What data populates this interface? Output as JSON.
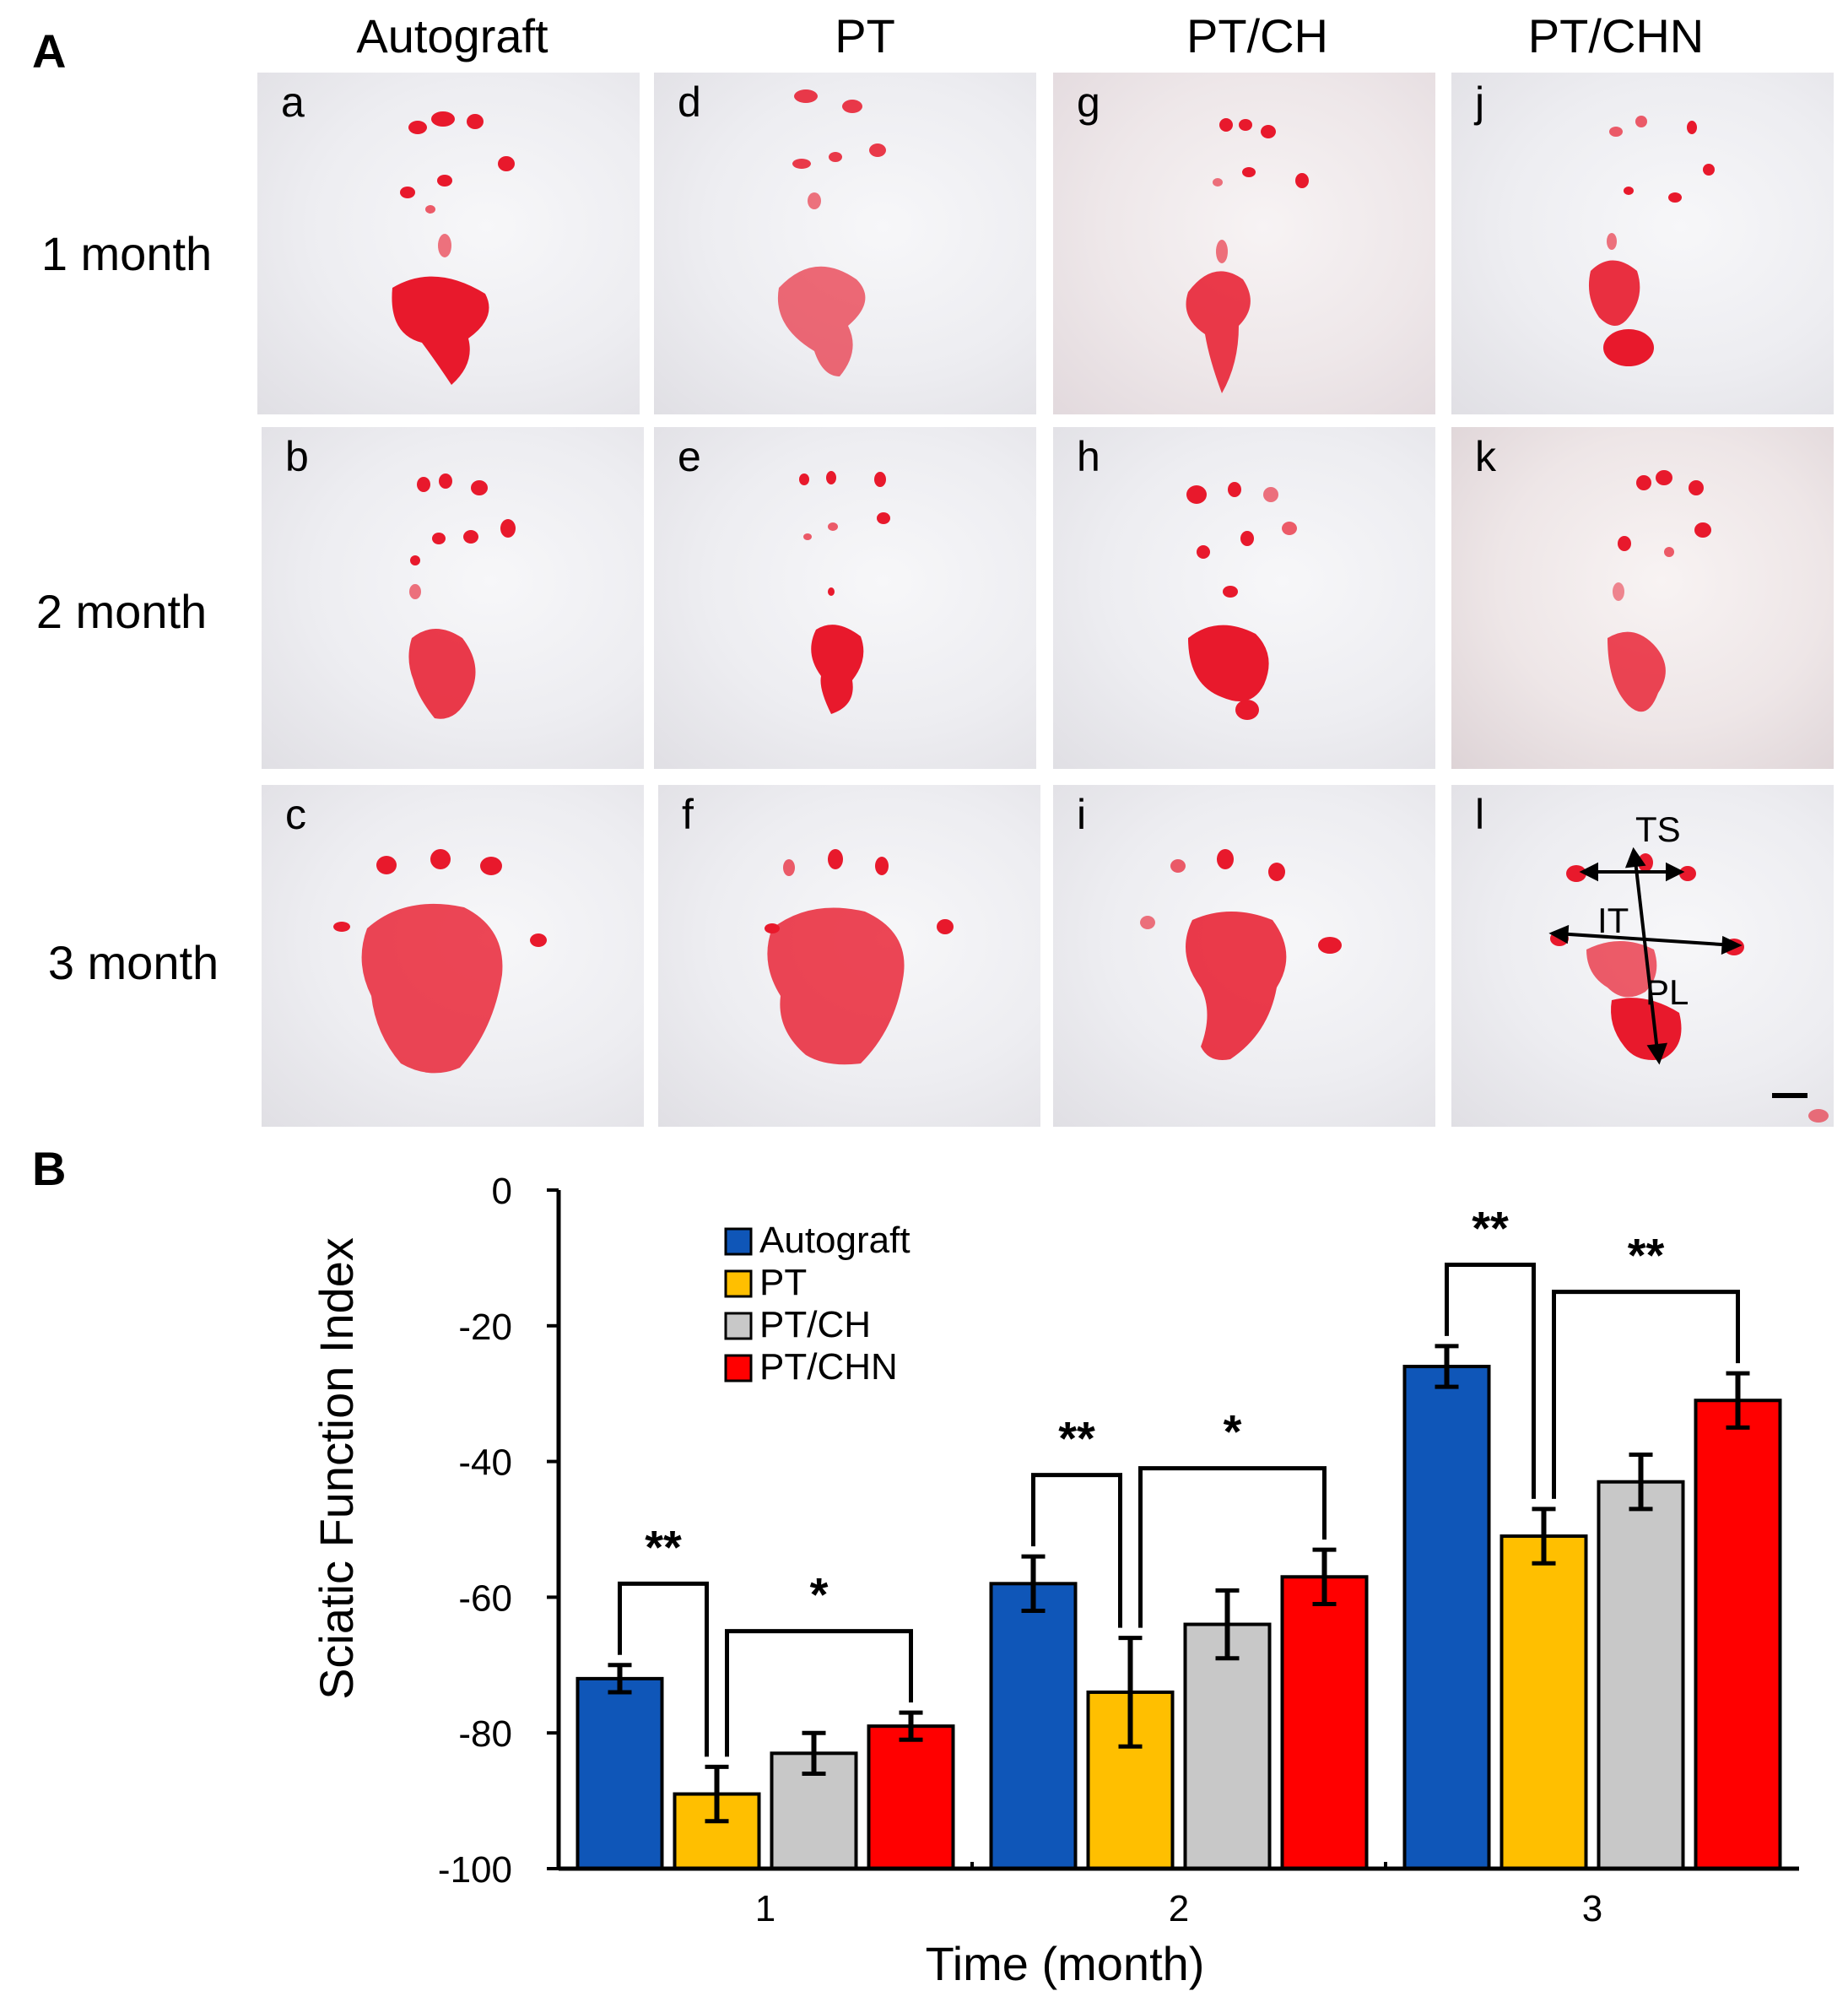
{
  "panel_a": {
    "label": "A",
    "columns": [
      "Autograft",
      "PT",
      "PT/CH",
      "PT/CHN"
    ],
    "rows": [
      "1 month",
      "2 month",
      "3 month"
    ],
    "sublabels": [
      "a",
      "b",
      "c",
      "d",
      "e",
      "f",
      "g",
      "h",
      "i",
      "j",
      "k",
      "l"
    ],
    "annotations": {
      "ts": "TS",
      "it": "IT",
      "pl": "PL"
    }
  },
  "panel_b": {
    "label": "B"
  },
  "chart_data": {
    "type": "bar",
    "categories": [
      "1",
      "2",
      "3"
    ],
    "series": [
      {
        "name": "Autograft",
        "color": "#0f56b8",
        "values": [
          -72,
          -58,
          -26
        ],
        "errors": [
          2,
          4,
          3
        ]
      },
      {
        "name": "PT",
        "color": "#ffbf00",
        "values": [
          -89,
          -74,
          -51
        ],
        "errors": [
          4,
          8,
          4
        ]
      },
      {
        "name": "PT/CH",
        "color": "#c8c8c8",
        "values": [
          -83,
          -64,
          -43
        ],
        "errors": [
          3,
          5,
          4
        ]
      },
      {
        "name": "PT/CHN",
        "color": "#ff0000",
        "values": [
          -79,
          -57,
          -31
        ],
        "errors": [
          2,
          4,
          4
        ]
      }
    ],
    "xlabel": "Time (month)",
    "ylabel": "Sciatic Function Index",
    "ylim": [
      -100,
      0
    ],
    "yticks": [
      "0",
      "-20",
      "-40",
      "-60",
      "-80",
      "-100"
    ],
    "significance": [
      {
        "group": "1",
        "from": "Autograft",
        "to": "PT",
        "mark": "**"
      },
      {
        "group": "1",
        "from": "PT",
        "to": "PT/CHN",
        "mark": "*"
      },
      {
        "group": "2",
        "from": "Autograft",
        "to": "PT",
        "mark": "**"
      },
      {
        "group": "2",
        "from": "PT",
        "to": "PT/CHN",
        "mark": "*"
      },
      {
        "group": "3",
        "from": "Autograft",
        "to": "PT",
        "mark": "**"
      },
      {
        "group": "3",
        "from": "PT",
        "to": "PT/CHN",
        "mark": "**"
      }
    ],
    "legend_position": "top-left"
  }
}
